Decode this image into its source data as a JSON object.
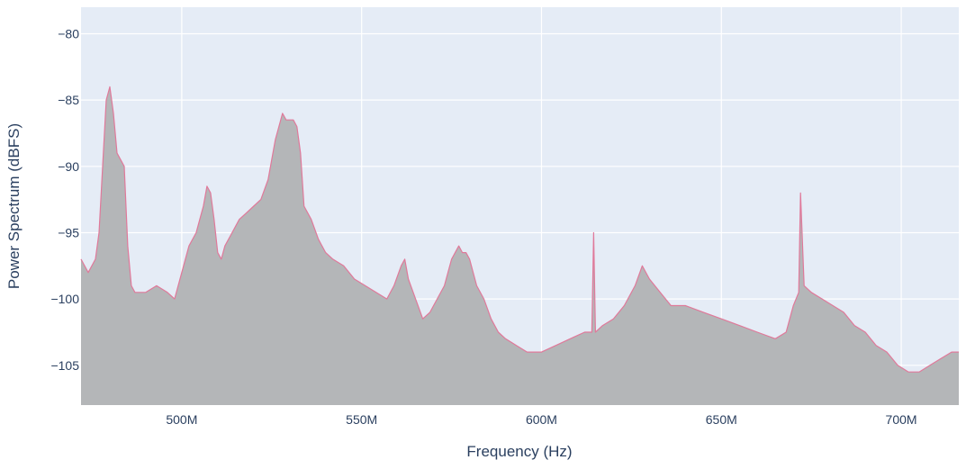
{
  "chart_data": {
    "type": "area",
    "title": "",
    "xlabel": "Frequency (Hz)",
    "ylabel": "Power Spectrum (dBFS)",
    "xlim": [
      472000000,
      716000000
    ],
    "ylim": [
      -108,
      -78
    ],
    "grid": true,
    "legend": "none",
    "x_ticks": [
      {
        "value": 500000000,
        "label": "500M"
      },
      {
        "value": 550000000,
        "label": "550M"
      },
      {
        "value": 600000000,
        "label": "600M"
      },
      {
        "value": 650000000,
        "label": "650M"
      },
      {
        "value": 700000000,
        "label": "700M"
      }
    ],
    "y_ticks": [
      {
        "value": -80,
        "label": "−80"
      },
      {
        "value": -85,
        "label": "−85"
      },
      {
        "value": -90,
        "label": "−90"
      },
      {
        "value": -95,
        "label": "−95"
      },
      {
        "value": -100,
        "label": "−100"
      },
      {
        "value": -105,
        "label": "−105"
      }
    ],
    "series": [
      {
        "line_color": "#e0799a",
        "fill_color": "#b4b6b8",
        "x": [
          472000000,
          474000000,
          476000000,
          477000000,
          478000000,
          479000000,
          480000000,
          481000000,
          482000000,
          483000000,
          484000000,
          485000000,
          486000000,
          487000000,
          490000000,
          493000000,
          496000000,
          498000000,
          500000000,
          502000000,
          504000000,
          505000000,
          506000000,
          507000000,
          508000000,
          509000000,
          510000000,
          511000000,
          512000000,
          514000000,
          516000000,
          518000000,
          520000000,
          522000000,
          524000000,
          526000000,
          527000000,
          528000000,
          529000000,
          530000000,
          531000000,
          532000000,
          533000000,
          534000000,
          536000000,
          538000000,
          540000000,
          542000000,
          545000000,
          548000000,
          551000000,
          554000000,
          557000000,
          559000000,
          561000000,
          562000000,
          563000000,
          565000000,
          567000000,
          569000000,
          571000000,
          573000000,
          575000000,
          576000000,
          577000000,
          578000000,
          579000000,
          580000000,
          582000000,
          584000000,
          586000000,
          588000000,
          590000000,
          593000000,
          596000000,
          600000000,
          604000000,
          608000000,
          612000000,
          614000000,
          614500000,
          615000000,
          617000000,
          620000000,
          623000000,
          626000000,
          628000000,
          630000000,
          633000000,
          636000000,
          640000000,
          645000000,
          650000000,
          655000000,
          660000000,
          665000000,
          668000000,
          670000000,
          671500000,
          672000000,
          673000000,
          675000000,
          678000000,
          681000000,
          684000000,
          687000000,
          690000000,
          693000000,
          696000000,
          699000000,
          702000000,
          705000000,
          708000000,
          711000000,
          714000000,
          716000000
        ],
        "y": [
          -97,
          -98,
          -97,
          -95,
          -90,
          -85,
          -84,
          -86,
          -89,
          -89.5,
          -90,
          -96,
          -99,
          -99.5,
          -99.5,
          -99,
          -99.5,
          -100,
          -98,
          -96,
          -95,
          -94,
          -93,
          -91.5,
          -92,
          -94,
          -96.5,
          -97,
          -96,
          -95,
          -94,
          -93.5,
          -93,
          -92.5,
          -91,
          -88,
          -87,
          -86,
          -86.5,
          -86.5,
          -86.5,
          -87,
          -89,
          -93,
          -94,
          -95.5,
          -96.5,
          -97,
          -97.5,
          -98.5,
          -99,
          -99.5,
          -100,
          -99,
          -97.5,
          -97,
          -98.5,
          -100,
          -101.5,
          -101,
          -100,
          -99,
          -97,
          -96.5,
          -96,
          -96.5,
          -96.5,
          -97,
          -99,
          -100,
          -101.5,
          -102.5,
          -103,
          -103.5,
          -104,
          -104,
          -103.5,
          -103,
          -102.5,
          -102.5,
          -95,
          -102.5,
          -102,
          -101.5,
          -100.5,
          -99,
          -97.5,
          -98.5,
          -99.5,
          -100.5,
          -100.5,
          -101,
          -101.5,
          -102,
          -102.5,
          -103,
          -102.5,
          -100.5,
          -99.5,
          -92,
          -99,
          -99.5,
          -100,
          -100.5,
          -101,
          -102,
          -102.5,
          -103.5,
          -104,
          -105,
          -105.5,
          -105.5,
          -105,
          -104.5,
          -104,
          -104
        ]
      }
    ]
  }
}
